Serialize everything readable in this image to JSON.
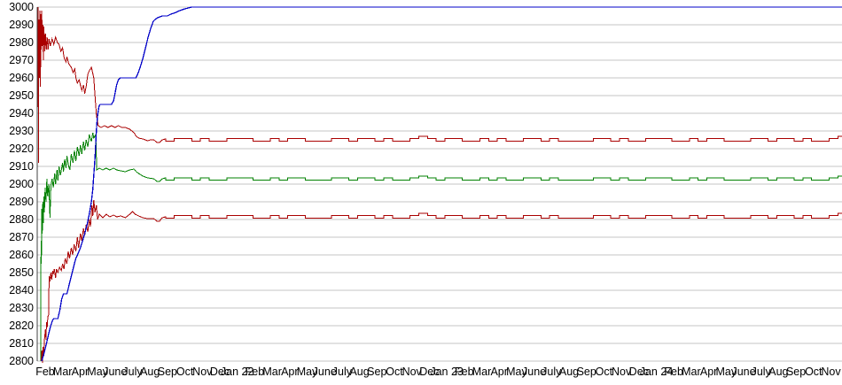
{
  "chart_data": {
    "type": "line",
    "title": "",
    "xlabel": "",
    "ylabel": "",
    "background": "#ffffff",
    "grid_color": "#c6c6c6",
    "axis_color": "#404040",
    "text_color": "#000000",
    "ylim": [
      2800,
      3000
    ],
    "y_tick_step": 10,
    "y_ticks": [
      3000,
      2990,
      2980,
      2970,
      2960,
      2950,
      2940,
      2930,
      2920,
      2910,
      2900,
      2890,
      2880,
      2870,
      2860,
      2850,
      2840,
      2830,
      2820,
      2810,
      2800
    ],
    "x_tick_labels": [
      "Feb",
      "Mar",
      "Apr",
      "May",
      "June",
      "July",
      "Aug",
      "Sep",
      "Oct",
      "Nov",
      "Dec",
      "Jan 22",
      "Feb",
      "Mar",
      "Apr",
      "May",
      "June",
      "July",
      "Aug",
      "Sep",
      "Oct",
      "Nov",
      "Dec",
      "Jan 23",
      "Feb",
      "Mar",
      "Apr",
      "May",
      "June",
      "July",
      "Aug",
      "Sep",
      "Oct",
      "Nov",
      "Dec",
      "Jan 24",
      "Feb",
      "Mar",
      "Apr",
      "May",
      "June",
      "July",
      "Aug",
      "Sep",
      "Oct",
      "Nov"
    ],
    "x_end_month": 46.1,
    "tail_step": 0.5,
    "tail_pattern": [
      0,
      1,
      1,
      0,
      1,
      0,
      0,
      1,
      1,
      1,
      0,
      0,
      1,
      0,
      1,
      1,
      0,
      0,
      0,
      1,
      1,
      0,
      1,
      1,
      0,
      1,
      0,
      0,
      1,
      2,
      1,
      0,
      1,
      1,
      0,
      0,
      1,
      0,
      1,
      0,
      0,
      1,
      1,
      0,
      1,
      0,
      0,
      0
    ],
    "series": [
      {
        "name": "red-upper-line",
        "color": "#aa0000",
        "stroke_width": 1,
        "head": [
          [
            0,
            3000
          ],
          [
            0.02,
            2912
          ],
          [
            0.05,
            2993
          ],
          [
            0.08,
            2960
          ],
          [
            0.1,
            2998
          ],
          [
            0.13,
            2955
          ],
          [
            0.16,
            2996
          ],
          [
            0.18,
            2976
          ],
          [
            0.21,
            2998
          ],
          [
            0.24,
            2978
          ],
          [
            0.27,
            2990
          ],
          [
            0.3,
            2970
          ],
          [
            0.33,
            2989
          ],
          [
            0.38,
            2975
          ],
          [
            0.42,
            2985
          ],
          [
            0.47,
            2976
          ],
          [
            0.52,
            2983
          ],
          [
            0.57,
            2976
          ],
          [
            0.62,
            2982
          ],
          [
            0.7,
            2978
          ],
          [
            0.8,
            2982
          ],
          [
            0.9,
            2979
          ],
          [
            1,
            2983
          ],
          [
            1.1,
            2980
          ],
          [
            1.2,
            2979
          ],
          [
            1.3,
            2975
          ],
          [
            1.4,
            2977
          ],
          [
            1.5,
            2971
          ],
          [
            1.6,
            2969
          ],
          [
            1.65,
            2972
          ],
          [
            1.75,
            2968
          ],
          [
            1.9,
            2966
          ],
          [
            2,
            2963
          ],
          [
            2.1,
            2965
          ],
          [
            2.16,
            2960
          ],
          [
            2.25,
            2957
          ],
          [
            2.35,
            2959
          ],
          [
            2.42,
            2956
          ],
          [
            2.5,
            2953
          ],
          [
            2.6,
            2956
          ],
          [
            2.67,
            2951
          ],
          [
            2.75,
            2955
          ],
          [
            2.85,
            2962
          ],
          [
            2.93,
            2964
          ],
          [
            3.05,
            2966
          ],
          [
            3.12,
            2963
          ],
          [
            3.19,
            2960
          ],
          [
            3.28,
            2947
          ],
          [
            3.34,
            2939
          ],
          [
            3.44,
            2933
          ],
          [
            3.6,
            2932
          ],
          [
            3.8,
            2933
          ],
          [
            4,
            2932
          ],
          [
            4.2,
            2933
          ],
          [
            4.4,
            2932
          ],
          [
            4.6,
            2933
          ],
          [
            4.8,
            2932
          ],
          [
            5,
            2932
          ],
          [
            5.25,
            2931
          ],
          [
            5.5,
            2929
          ],
          [
            5.62,
            2927
          ],
          [
            5.76,
            2926
          ],
          [
            6,
            2925.5
          ],
          [
            6.27,
            2924.5
          ],
          [
            6.45,
            2925
          ],
          [
            6.63,
            2925
          ],
          [
            6.8,
            2923.5
          ],
          [
            6.95,
            2923.5
          ],
          [
            7.1,
            2925
          ],
          [
            7.3,
            2925.5
          ]
        ],
        "tail": {
          "from": 7.3,
          "base": 2924.3,
          "amp": 1.4
        }
      },
      {
        "name": "green-middle-line",
        "color": "#008000",
        "stroke_width": 1,
        "head": [
          [
            0.15,
            2800
          ],
          [
            0.17,
            2868
          ],
          [
            0.19,
            2855
          ],
          [
            0.21,
            2886
          ],
          [
            0.24,
            2872
          ],
          [
            0.27,
            2890
          ],
          [
            0.3,
            2878
          ],
          [
            0.33,
            2893
          ],
          [
            0.36,
            2884
          ],
          [
            0.4,
            2898
          ],
          [
            0.45,
            2890
          ],
          [
            0.5,
            2903
          ],
          [
            0.55,
            2893
          ],
          [
            0.62,
            2900
          ],
          [
            0.68,
            2881
          ],
          [
            0.73,
            2899
          ],
          [
            0.8,
            2903
          ],
          [
            0.87,
            2898
          ],
          [
            0.95,
            2906
          ],
          [
            1,
            2900
          ],
          [
            1.08,
            2908
          ],
          [
            1.13,
            2902
          ],
          [
            1.2,
            2910
          ],
          [
            1.28,
            2905
          ],
          [
            1.4,
            2912
          ],
          [
            1.45,
            2907
          ],
          [
            1.52,
            2914
          ],
          [
            1.6,
            2909
          ],
          [
            1.65,
            2916
          ],
          [
            1.75,
            2910
          ],
          [
            1.82,
            2908
          ],
          [
            1.9,
            2917
          ],
          [
            2,
            2912
          ],
          [
            2.08,
            2919
          ],
          [
            2.16,
            2913
          ],
          [
            2.25,
            2921
          ],
          [
            2.35,
            2916
          ],
          [
            2.42,
            2922
          ],
          [
            2.5,
            2917
          ],
          [
            2.6,
            2924
          ],
          [
            2.67,
            2919
          ],
          [
            2.75,
            2925
          ],
          [
            2.85,
            2921
          ],
          [
            2.93,
            2928
          ],
          [
            3.05,
            2924
          ],
          [
            3.13,
            2929
          ],
          [
            3.19,
            2926
          ],
          [
            3.3,
            2928
          ],
          [
            3.36,
            2908
          ],
          [
            3.5,
            2909
          ],
          [
            3.7,
            2908
          ],
          [
            3.9,
            2909
          ],
          [
            4.1,
            2908
          ],
          [
            4.32,
            2909
          ],
          [
            4.5,
            2908
          ],
          [
            4.73,
            2907.5
          ],
          [
            5,
            2907
          ],
          [
            5.25,
            2908
          ],
          [
            5.5,
            2908.5
          ],
          [
            5.62,
            2907
          ],
          [
            5.76,
            2906
          ],
          [
            6,
            2904.5
          ],
          [
            6.27,
            2903.5
          ],
          [
            6.63,
            2903
          ],
          [
            6.8,
            2901.5
          ],
          [
            6.95,
            2901.5
          ],
          [
            7.1,
            2903
          ],
          [
            7.3,
            2903.5
          ]
        ],
        "tail": {
          "from": 7.3,
          "base": 2902.3,
          "amp": 1.1
        }
      },
      {
        "name": "red-lower-line",
        "color": "#aa0000",
        "stroke_width": 1,
        "head": [
          [
            0.18,
            2800
          ],
          [
            0.22,
            2806
          ],
          [
            0.25,
            2799
          ],
          [
            0.28,
            2808
          ],
          [
            0.32,
            2803
          ],
          [
            0.36,
            2812
          ],
          [
            0.42,
            2818
          ],
          [
            0.45,
            2812
          ],
          [
            0.48,
            2822
          ],
          [
            0.52,
            2819
          ],
          [
            0.56,
            2825
          ],
          [
            0.6,
            2826
          ],
          [
            0.62,
            2840
          ],
          [
            0.64,
            2848
          ],
          [
            0.68,
            2845
          ],
          [
            0.73,
            2850
          ],
          [
            0.78,
            2846
          ],
          [
            0.83,
            2851
          ],
          [
            0.87,
            2849
          ],
          [
            0.93,
            2852
          ],
          [
            1,
            2847
          ],
          [
            1.05,
            2852
          ],
          [
            1.13,
            2850
          ],
          [
            1.23,
            2853
          ],
          [
            1.33,
            2851
          ],
          [
            1.4,
            2855
          ],
          [
            1.48,
            2852
          ],
          [
            1.55,
            2858
          ],
          [
            1.65,
            2855
          ],
          [
            1.72,
            2862
          ],
          [
            1.8,
            2858
          ],
          [
            1.9,
            2864
          ],
          [
            1.98,
            2860
          ],
          [
            2.06,
            2866
          ],
          [
            2.16,
            2862
          ],
          [
            2.25,
            2870
          ],
          [
            2.32,
            2864
          ],
          [
            2.42,
            2872
          ],
          [
            2.5,
            2868
          ],
          [
            2.6,
            2875
          ],
          [
            2.67,
            2871
          ],
          [
            2.75,
            2877
          ],
          [
            2.85,
            2873
          ],
          [
            2.93,
            2880
          ],
          [
            3,
            2876
          ],
          [
            3.08,
            2888
          ],
          [
            3.13,
            2882
          ],
          [
            3.19,
            2891
          ],
          [
            3.26,
            2884
          ],
          [
            3.34,
            2888
          ],
          [
            3.4,
            2880
          ],
          [
            3.5,
            2883
          ],
          [
            3.7,
            2881
          ],
          [
            3.9,
            2883
          ],
          [
            4.1,
            2881.5
          ],
          [
            4.32,
            2882.5
          ],
          [
            4.5,
            2881.5
          ],
          [
            4.73,
            2882
          ],
          [
            5,
            2881
          ],
          [
            5.25,
            2883
          ],
          [
            5.4,
            2884.5
          ],
          [
            5.55,
            2883
          ],
          [
            5.76,
            2882
          ],
          [
            6,
            2881
          ],
          [
            6.27,
            2880.5
          ],
          [
            6.63,
            2880.5
          ],
          [
            6.8,
            2879
          ],
          [
            6.95,
            2879
          ],
          [
            7.1,
            2881
          ],
          [
            7.3,
            2881.5
          ]
        ],
        "tail": {
          "from": 7.3,
          "base": 2880.8,
          "amp": 1.4
        }
      },
      {
        "name": "blue-top-line",
        "color": "#0000c8",
        "stroke_width": 1.3,
        "head": [
          [
            0.21,
            2800
          ],
          [
            0.3,
            2803
          ],
          [
            0.4,
            2807
          ],
          [
            0.5,
            2811
          ],
          [
            0.62,
            2816
          ],
          [
            0.72,
            2820
          ],
          [
            0.82,
            2823
          ],
          [
            0.9,
            2824
          ],
          [
            1.13,
            2824
          ],
          [
            1.25,
            2829
          ],
          [
            1.35,
            2835
          ],
          [
            1.45,
            2838
          ],
          [
            1.65,
            2838
          ],
          [
            1.75,
            2842
          ],
          [
            1.85,
            2846
          ],
          [
            1.95,
            2850
          ],
          [
            2.05,
            2854
          ],
          [
            2.16,
            2858
          ],
          [
            2.3,
            2861
          ],
          [
            2.42,
            2864
          ],
          [
            2.55,
            2868
          ],
          [
            2.67,
            2872
          ],
          [
            2.8,
            2877
          ],
          [
            2.93,
            2883
          ],
          [
            3.05,
            2890
          ],
          [
            3.13,
            2897
          ],
          [
            3.19,
            2905
          ],
          [
            3.26,
            2915
          ],
          [
            3.31,
            2925
          ],
          [
            3.36,
            2934
          ],
          [
            3.42,
            2940
          ],
          [
            3.49,
            2944
          ],
          [
            3.55,
            2945
          ],
          [
            4.2,
            2945
          ],
          [
            4.32,
            2947
          ],
          [
            4.4,
            2951
          ],
          [
            4.5,
            2956
          ],
          [
            4.6,
            2959
          ],
          [
            4.7,
            2960
          ],
          [
            5.6,
            2960
          ],
          [
            5.7,
            2962
          ],
          [
            5.85,
            2966
          ],
          [
            6,
            2971
          ],
          [
            6.15,
            2977
          ],
          [
            6.3,
            2983
          ],
          [
            6.45,
            2988
          ],
          [
            6.6,
            2992
          ],
          [
            6.7,
            2993
          ],
          [
            6.85,
            2994
          ],
          [
            7.1,
            2995
          ],
          [
            7.4,
            2995
          ],
          [
            7.6,
            2996
          ],
          [
            7.9,
            2997
          ],
          [
            8.1,
            2998
          ],
          [
            8.4,
            2999
          ],
          [
            8.8,
            3000
          ]
        ],
        "tail": {
          "from": 8.8,
          "base": 3000,
          "amp": 0
        }
      }
    ],
    "legend": null,
    "grid": "horizontal-only"
  }
}
